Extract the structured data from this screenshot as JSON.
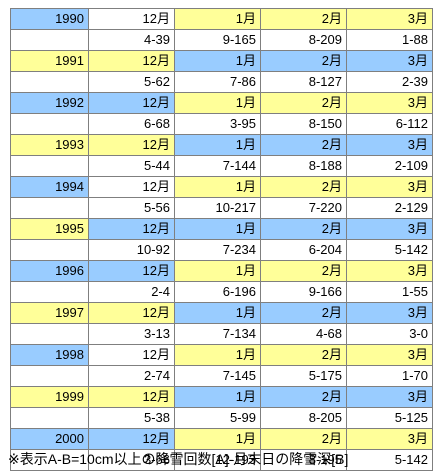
{
  "colors": {
    "cyan": "#99ccff",
    "yellow": "#ffff99",
    "white": "#ffffff",
    "border": "#7f7f7f"
  },
  "months": [
    "12月",
    "1月",
    "2月",
    "3月"
  ],
  "years": [
    {
      "year": "1990",
      "values": [
        "4-39",
        "9-165",
        "8-209",
        "1-88"
      ],
      "cells": [
        "cyan",
        "white",
        "yellow",
        "yellow",
        "yellow"
      ]
    },
    {
      "year": "1991",
      "values": [
        "5-62",
        "7-86",
        "8-127",
        "2-39"
      ],
      "cells": [
        "yellow",
        "yellow",
        "cyan",
        "cyan",
        "cyan"
      ]
    },
    {
      "year": "1992",
      "values": [
        "6-68",
        "3-95",
        "8-150",
        "6-112"
      ],
      "cells": [
        "cyan",
        "cyan",
        "yellow",
        "yellow",
        "yellow"
      ]
    },
    {
      "year": "1993",
      "values": [
        "5-44",
        "7-144",
        "8-188",
        "2-109"
      ],
      "cells": [
        "yellow",
        "yellow",
        "cyan",
        "cyan",
        "cyan"
      ]
    },
    {
      "year": "1994",
      "values": [
        "5-56",
        "10-217",
        "7-220",
        "2-129"
      ],
      "cells": [
        "cyan",
        "white",
        "yellow",
        "yellow",
        "yellow"
      ]
    },
    {
      "year": "1995",
      "values": [
        "10-92",
        "7-234",
        "6-204",
        "5-142"
      ],
      "cells": [
        "yellow",
        "cyan",
        "cyan",
        "cyan",
        "cyan"
      ]
    },
    {
      "year": "1996",
      "values": [
        "2-4",
        "6-196",
        "9-166",
        "1-55"
      ],
      "cells": [
        "cyan",
        "cyan",
        "yellow",
        "yellow",
        "yellow"
      ]
    },
    {
      "year": "1997",
      "values": [
        "3-13",
        "7-134",
        "4-68",
        "3-0"
      ],
      "cells": [
        "yellow",
        "yellow",
        "cyan",
        "cyan",
        "cyan"
      ]
    },
    {
      "year": "1998",
      "values": [
        "2-74",
        "7-145",
        "5-175",
        "1-70"
      ],
      "cells": [
        "cyan",
        "white",
        "yellow",
        "yellow",
        "yellow"
      ]
    },
    {
      "year": "1999",
      "values": [
        "5-38",
        "5-99",
        "8-205",
        "5-125"
      ],
      "cells": [
        "yellow",
        "yellow",
        "cyan",
        "cyan",
        "cyan"
      ]
    },
    {
      "year": "2000",
      "values": [
        "3-66",
        "12-193",
        "8-195",
        "5-142"
      ],
      "cells": [
        "cyan",
        "cyan",
        "yellow",
        "yellow",
        "yellow"
      ]
    }
  ],
  "footnote": "※表示A-B=10cm以上の降雪回数[A]-月末日の降雪深[B]"
}
